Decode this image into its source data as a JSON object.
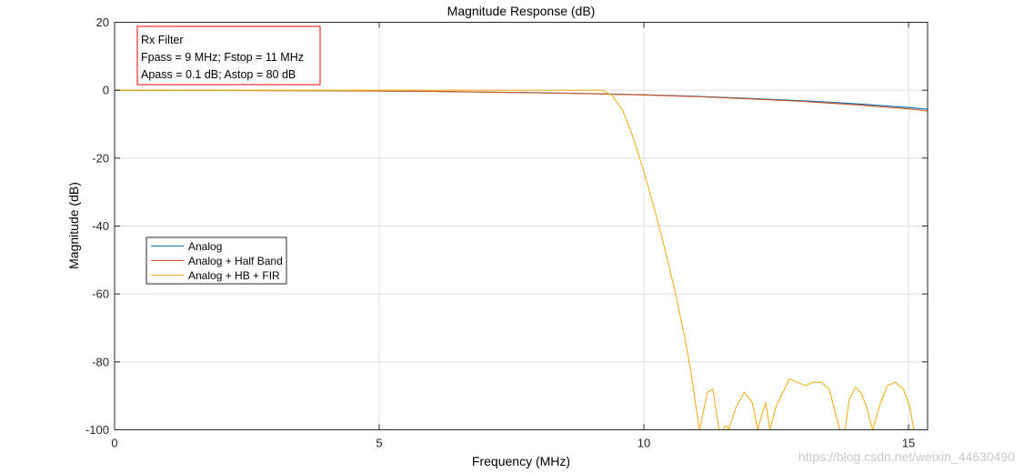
{
  "chart_data": {
    "type": "line",
    "title": "Magnitude Response (dB)",
    "xlabel": "Frequency (MHz)",
    "ylabel": "Magnitude (dB)",
    "xlim": [
      0,
      15.36
    ],
    "ylim": [
      -100,
      20
    ],
    "xticks": [
      0,
      5,
      10,
      15
    ],
    "yticks": [
      20,
      0,
      -20,
      -40,
      -60,
      -80,
      -100
    ],
    "grid": true,
    "legend_position": "middle-left",
    "annotation": {
      "lines": [
        "Rx Filter",
        "Fpass = 9 MHz; Fstop = 11 MHz",
        "Apass = 0.1 dB; Astop = 80 dB"
      ],
      "border_color": "#ff0000"
    },
    "series": [
      {
        "name": "Analog",
        "color": "#0072bd",
        "x": [
          0,
          2,
          4,
          6,
          8,
          9,
          10,
          11,
          12,
          13,
          14,
          15,
          15.36
        ],
        "y": [
          0,
          -0.05,
          -0.15,
          -0.35,
          -0.75,
          -1.0,
          -1.35,
          -1.8,
          -2.4,
          -3.1,
          -4.0,
          -5.1,
          -5.6
        ]
      },
      {
        "name": "Analog + Half Band",
        "color": "#d95319",
        "x": [
          0,
          2,
          4,
          6,
          8,
          9,
          10,
          11,
          12,
          13,
          14,
          15,
          15.36
        ],
        "y": [
          0,
          -0.05,
          -0.15,
          -0.35,
          -0.78,
          -1.05,
          -1.4,
          -1.9,
          -2.55,
          -3.3,
          -4.3,
          -5.5,
          -6.1
        ]
      },
      {
        "name": "Analog + HB + FIR",
        "color": "#edb120",
        "x": [
          0,
          3,
          6,
          8,
          8.8,
          9.0,
          9.2,
          9.4,
          9.6,
          9.8,
          10.0,
          10.2,
          10.4,
          10.6,
          10.8,
          10.9,
          11.0,
          11.05,
          11.2,
          11.3,
          11.42,
          11.5,
          11.52,
          11.55,
          11.58,
          11.6,
          11.75,
          11.9,
          12.05,
          12.15,
          12.22,
          12.3,
          12.38,
          12.5,
          12.75,
          12.9,
          13.05,
          13.2,
          13.35,
          13.5,
          13.7,
          13.8,
          13.88,
          14.0,
          14.1,
          14.2,
          14.32,
          14.45,
          14.6,
          14.75,
          14.9,
          15.02,
          15.1
        ],
        "y": [
          0,
          0,
          0,
          0,
          0,
          0,
          0,
          -1.5,
          -6,
          -14,
          -24,
          -35,
          -47,
          -60,
          -75,
          -84,
          -95,
          -100,
          -89,
          -88,
          -100,
          -100,
          -99,
          -99,
          -99,
          -100,
          -93,
          -89,
          -92,
          -100,
          -96,
          -92,
          -100,
          -93,
          -85,
          -86,
          -87,
          -86,
          -86,
          -88,
          -100,
          -100,
          -91,
          -87.5,
          -89,
          -93,
          -100,
          -93,
          -87,
          -86,
          -88,
          -93,
          -100
        ]
      }
    ]
  },
  "watermark": "https://blog.csdn.net/weixin_44630490"
}
